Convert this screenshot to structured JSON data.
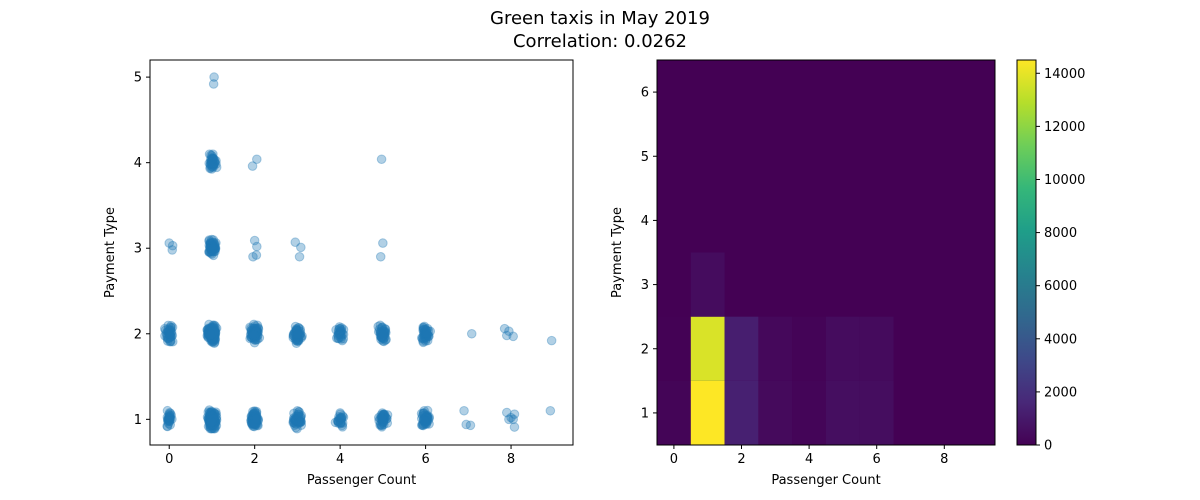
{
  "figure": {
    "title_line1": "Green taxis in May 2019",
    "title_line2": "Correlation: 0.0262"
  },
  "chart_data": [
    {
      "type": "scatter",
      "xlabel": "Passenger Count",
      "ylabel": "Payment Type",
      "xlim": [
        -0.45,
        9.45
      ],
      "ylim": [
        0.7,
        5.2
      ],
      "xticks": [
        0,
        2,
        4,
        6,
        8
      ],
      "yticks": [
        1,
        2,
        3,
        4,
        5
      ],
      "marker_color": "#1f77b4",
      "marker_alpha": 0.35,
      "jitter": 0.1,
      "clusters": [
        {
          "x": 0,
          "y": 1,
          "n": 30
        },
        {
          "x": 0,
          "y": 2,
          "n": 40
        },
        {
          "x": 1,
          "y": 1,
          "n": 150
        },
        {
          "x": 1,
          "y": 2,
          "n": 150
        },
        {
          "x": 1,
          "y": 3,
          "n": 60
        },
        {
          "x": 1,
          "y": 4,
          "n": 40
        },
        {
          "x": 2,
          "y": 1,
          "n": 80
        },
        {
          "x": 2,
          "y": 2,
          "n": 80
        },
        {
          "x": 3,
          "y": 1,
          "n": 50
        },
        {
          "x": 3,
          "y": 2,
          "n": 50
        },
        {
          "x": 4,
          "y": 1,
          "n": 25
        },
        {
          "x": 4,
          "y": 2,
          "n": 25
        },
        {
          "x": 5,
          "y": 1,
          "n": 45
        },
        {
          "x": 5,
          "y": 2,
          "n": 45
        },
        {
          "x": 6,
          "y": 1,
          "n": 45
        },
        {
          "x": 6,
          "y": 2,
          "n": 45
        }
      ],
      "points": [
        {
          "x": 0.0,
          "y": 3.06
        },
        {
          "x": 0.07,
          "y": 2.98
        },
        {
          "x": 0.08,
          "y": 3.03
        },
        {
          "x": 1.05,
          "y": 5.0
        },
        {
          "x": 1.04,
          "y": 4.92
        },
        {
          "x": 2.05,
          "y": 4.04
        },
        {
          "x": 1.95,
          "y": 3.96
        },
        {
          "x": 2.0,
          "y": 3.09
        },
        {
          "x": 2.05,
          "y": 3.02
        },
        {
          "x": 1.96,
          "y": 2.9
        },
        {
          "x": 2.04,
          "y": 2.92
        },
        {
          "x": 2.95,
          "y": 3.07
        },
        {
          "x": 3.08,
          "y": 3.01
        },
        {
          "x": 3.05,
          "y": 2.9
        },
        {
          "x": 4.0,
          "y": 2.0
        },
        {
          "x": 4.08,
          "y": 2.05
        },
        {
          "x": 3.92,
          "y": 1.95
        },
        {
          "x": 4.05,
          "y": 1.92
        },
        {
          "x": 4.97,
          "y": 4.04
        },
        {
          "x": 5.0,
          "y": 3.06
        },
        {
          "x": 4.95,
          "y": 2.9
        },
        {
          "x": 7.08,
          "y": 2.0
        },
        {
          "x": 6.9,
          "y": 1.1
        },
        {
          "x": 6.95,
          "y": 0.94
        },
        {
          "x": 7.05,
          "y": 0.93
        },
        {
          "x": 7.85,
          "y": 2.06
        },
        {
          "x": 7.95,
          "y": 2.03
        },
        {
          "x": 8.05,
          "y": 1.97
        },
        {
          "x": 7.9,
          "y": 1.98
        },
        {
          "x": 7.9,
          "y": 1.08
        },
        {
          "x": 8.08,
          "y": 1.06
        },
        {
          "x": 7.95,
          "y": 1.0
        },
        {
          "x": 8.05,
          "y": 1.0
        },
        {
          "x": 8.0,
          "y": 1.02
        },
        {
          "x": 8.08,
          "y": 0.91
        },
        {
          "x": 8.95,
          "y": 1.92
        },
        {
          "x": 8.92,
          "y": 1.1
        }
      ]
    },
    {
      "type": "heatmap",
      "xlabel": "Passenger Count",
      "ylabel": "Payment Type",
      "xlim": [
        -0.5,
        9.5
      ],
      "ylim": [
        0.5,
        6.5
      ],
      "xticks": [
        0,
        2,
        4,
        6,
        8
      ],
      "yticks": [
        1,
        2,
        3,
        4,
        5,
        6
      ],
      "x_bin_width": 1,
      "y_bin_height": 1,
      "cells": [
        {
          "x": 0,
          "y": 1,
          "v": 150
        },
        {
          "x": 0,
          "y": 2,
          "v": 60
        },
        {
          "x": 1,
          "y": 1,
          "v": 14500
        },
        {
          "x": 1,
          "y": 2,
          "v": 13700
        },
        {
          "x": 1,
          "y": 3,
          "v": 450
        },
        {
          "x": 2,
          "y": 1,
          "v": 1300
        },
        {
          "x": 2,
          "y": 2,
          "v": 1200
        },
        {
          "x": 3,
          "y": 1,
          "v": 380
        },
        {
          "x": 3,
          "y": 2,
          "v": 300
        },
        {
          "x": 4,
          "y": 1,
          "v": 160
        },
        {
          "x": 4,
          "y": 2,
          "v": 120
        },
        {
          "x": 5,
          "y": 1,
          "v": 520
        },
        {
          "x": 5,
          "y": 2,
          "v": 440
        },
        {
          "x": 6,
          "y": 1,
          "v": 480
        },
        {
          "x": 6,
          "y": 2,
          "v": 420
        }
      ],
      "colorbar": {
        "min": 0,
        "max": 14500,
        "ticks": [
          0,
          2000,
          4000,
          6000,
          8000,
          10000,
          12000,
          14000
        ]
      },
      "colormap": [
        "#440154",
        "#482878",
        "#3e4989",
        "#31688e",
        "#26828e",
        "#1f9e89",
        "#35b779",
        "#6ece58",
        "#b5de2b",
        "#fde725"
      ]
    }
  ]
}
